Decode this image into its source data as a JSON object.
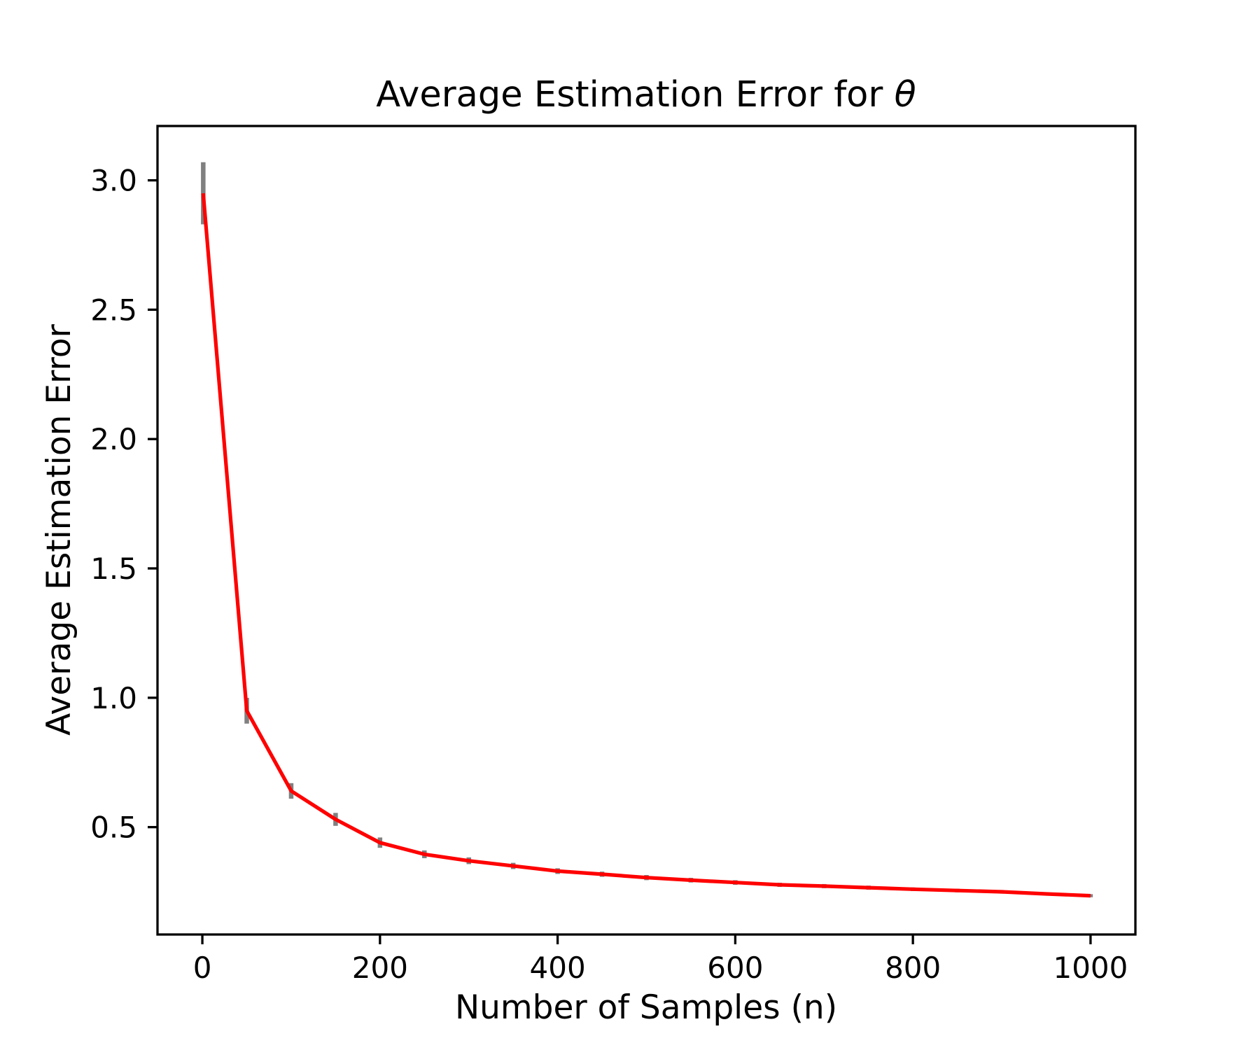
{
  "chart_data": {
    "type": "line",
    "title": "Average Estimation Error for θ",
    "title_prefix": "Average Estimation Error for ",
    "title_theta": "θ",
    "xlabel": "Number of Samples (n)",
    "ylabel": "Average Estimation Error",
    "x": [
      1,
      50,
      100,
      150,
      200,
      250,
      300,
      350,
      400,
      450,
      500,
      550,
      600,
      650,
      700,
      750,
      800,
      850,
      900,
      950,
      1000
    ],
    "y": [
      2.95,
      0.95,
      0.64,
      0.53,
      0.44,
      0.395,
      0.37,
      0.35,
      0.33,
      0.318,
      0.305,
      0.295,
      0.286,
      0.277,
      0.272,
      0.266,
      0.26,
      0.255,
      0.25,
      0.242,
      0.235
    ],
    "yerr": [
      0.12,
      0.05,
      0.03,
      0.025,
      0.02,
      0.015,
      0.013,
      0.012,
      0.011,
      0.01,
      0.01,
      0.009,
      0.009,
      0.008,
      0.008,
      0.008,
      0.007,
      0.007,
      0.007,
      0.006,
      0.006
    ],
    "xticks": [
      0,
      200,
      400,
      600,
      800,
      1000
    ],
    "yticks": [
      3.0,
      2.5,
      2.0,
      1.5,
      1.0,
      0.5
    ],
    "xlim": [
      -50.5,
      1050.5
    ],
    "ylim": [
      0.085,
      3.21
    ],
    "line_color": "#ff0000",
    "errorbar_color": "#808080",
    "axis_color": "#000000",
    "grid": false,
    "legend": null
  }
}
